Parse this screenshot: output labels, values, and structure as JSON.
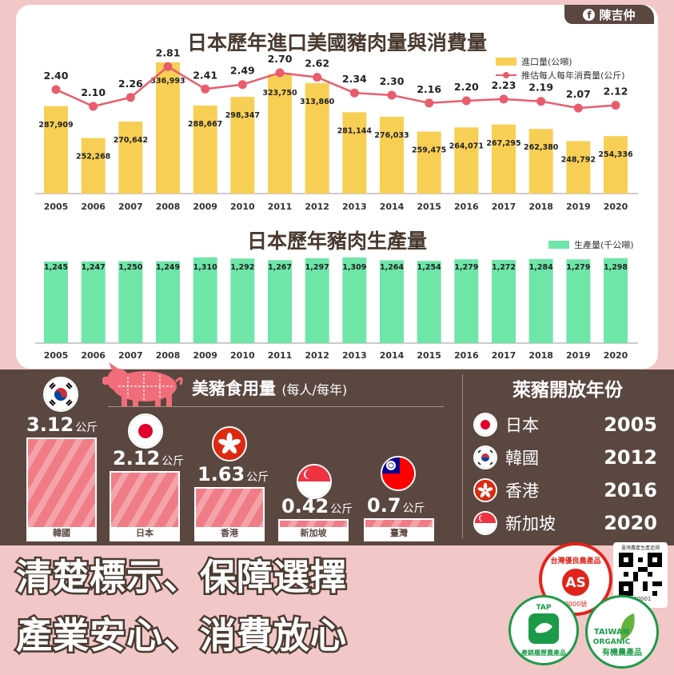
{
  "author": "陳吉仲",
  "chart_data": [
    {
      "type": "bar+line",
      "title": "日本歷年進口美國豬肉量與消費量",
      "categories": [
        "2005",
        "2006",
        "2007",
        "2008",
        "2009",
        "2010",
        "2011",
        "2012",
        "2013",
        "2014",
        "2015",
        "2016",
        "2017",
        "2018",
        "2019",
        "2020"
      ],
      "series": [
        {
          "name": "進口量(公噸)",
          "type": "bar",
          "color": "#f8cf55",
          "values": [
            287909,
            252268,
            270642,
            336993,
            288667,
            298347,
            323750,
            313860,
            281144,
            276033,
            259475,
            264071,
            267295,
            262380,
            248792,
            254336
          ],
          "labels": [
            "287,909",
            "252,268",
            "270,642",
            "336,993",
            "288,667",
            "298,347",
            "323,750",
            "313,860",
            "281,144",
            "276,033",
            "259,475",
            "264,071",
            "267,295",
            "262,380",
            "248,792",
            "254,336"
          ]
        },
        {
          "name": "推估每人每年消費量(公斤)",
          "type": "line",
          "color": "#e85d6d",
          "values": [
            2.4,
            2.1,
            2.26,
            2.81,
            2.41,
            2.49,
            2.7,
            2.62,
            2.34,
            2.3,
            2.16,
            2.2,
            2.23,
            2.19,
            2.07,
            2.12
          ],
          "labels": [
            "2.40",
            "2.10",
            "2.26",
            "2.81",
            "2.41",
            "2.49",
            "2.70",
            "2.62",
            "2.34",
            "2.30",
            "2.16",
            "2.20",
            "2.23",
            "2.19",
            "2.07",
            "2.12"
          ]
        }
      ]
    },
    {
      "type": "bar",
      "title": "日本歷年豬肉生產量",
      "categories": [
        "2005",
        "2006",
        "2007",
        "2008",
        "2009",
        "2010",
        "2011",
        "2012",
        "2013",
        "2014",
        "2015",
        "2016",
        "2017",
        "2018",
        "2019",
        "2020"
      ],
      "series": [
        {
          "name": "生產量(千公噸)",
          "color": "#6ee6a8",
          "values": [
            1245,
            1247,
            1250,
            1249,
            1310,
            1292,
            1267,
            1297,
            1309,
            1264,
            1254,
            1279,
            1272,
            1284,
            1279,
            1298
          ],
          "labels": [
            "1,245",
            "1,247",
            "1,250",
            "1,249",
            "1,310",
            "1,292",
            "1,267",
            "1,297",
            "1,309",
            "1,264",
            "1,254",
            "1,279",
            "1,272",
            "1,284",
            "1,279",
            "1,298"
          ]
        }
      ]
    },
    {
      "type": "bar",
      "title": "美豬食用量",
      "subtitle": "(每人/每年)",
      "unit": "公斤",
      "categories": [
        "韓國",
        "日本",
        "香港",
        "新加坡",
        "臺灣"
      ],
      "values": [
        3.12,
        2.12,
        1.63,
        0.42,
        0.7
      ],
      "labels": [
        "3.12",
        "2.12",
        "1.63",
        "0.42",
        "0.7"
      ]
    }
  ],
  "ractopamine": {
    "title": "萊豬開放年份",
    "rows": [
      {
        "country": "日本",
        "year": "2005"
      },
      {
        "country": "韓國",
        "year": "2012"
      },
      {
        "country": "香港",
        "year": "2016"
      },
      {
        "country": "新加坡",
        "year": "2020"
      }
    ]
  },
  "slogans": [
    "清楚標示、保障選擇",
    "產業安心、消費放心"
  ],
  "labels": {
    "cas": "台灣優良農產品",
    "cas_code": "0000號",
    "tap": "TAP",
    "tap_name": "產銷履歷農產品",
    "qr_caption": "臺灣農產生產追溯",
    "qr_code": "000001",
    "organic_en1": "TAIWAN",
    "organic_en2": "ORGANIC",
    "organic_zh": "有機農產品"
  },
  "colors": {
    "import_bar": "#f8cf55",
    "consumption_line": "#e85d6d",
    "production_bar": "#6ee6a8",
    "panel_bg": "#5a4740",
    "page_bg": "#f2c7c7",
    "pork_bar": "#f07c87"
  },
  "icons": [
    "facebook-icon",
    "pig-icon",
    "korea-flag-icon",
    "japan-flag-icon",
    "hongkong-flag-icon",
    "singapore-flag-icon",
    "taiwan-flag-icon",
    "cas-seal-icon",
    "tap-seal-icon",
    "organic-seal-icon",
    "qr-code-icon"
  ]
}
